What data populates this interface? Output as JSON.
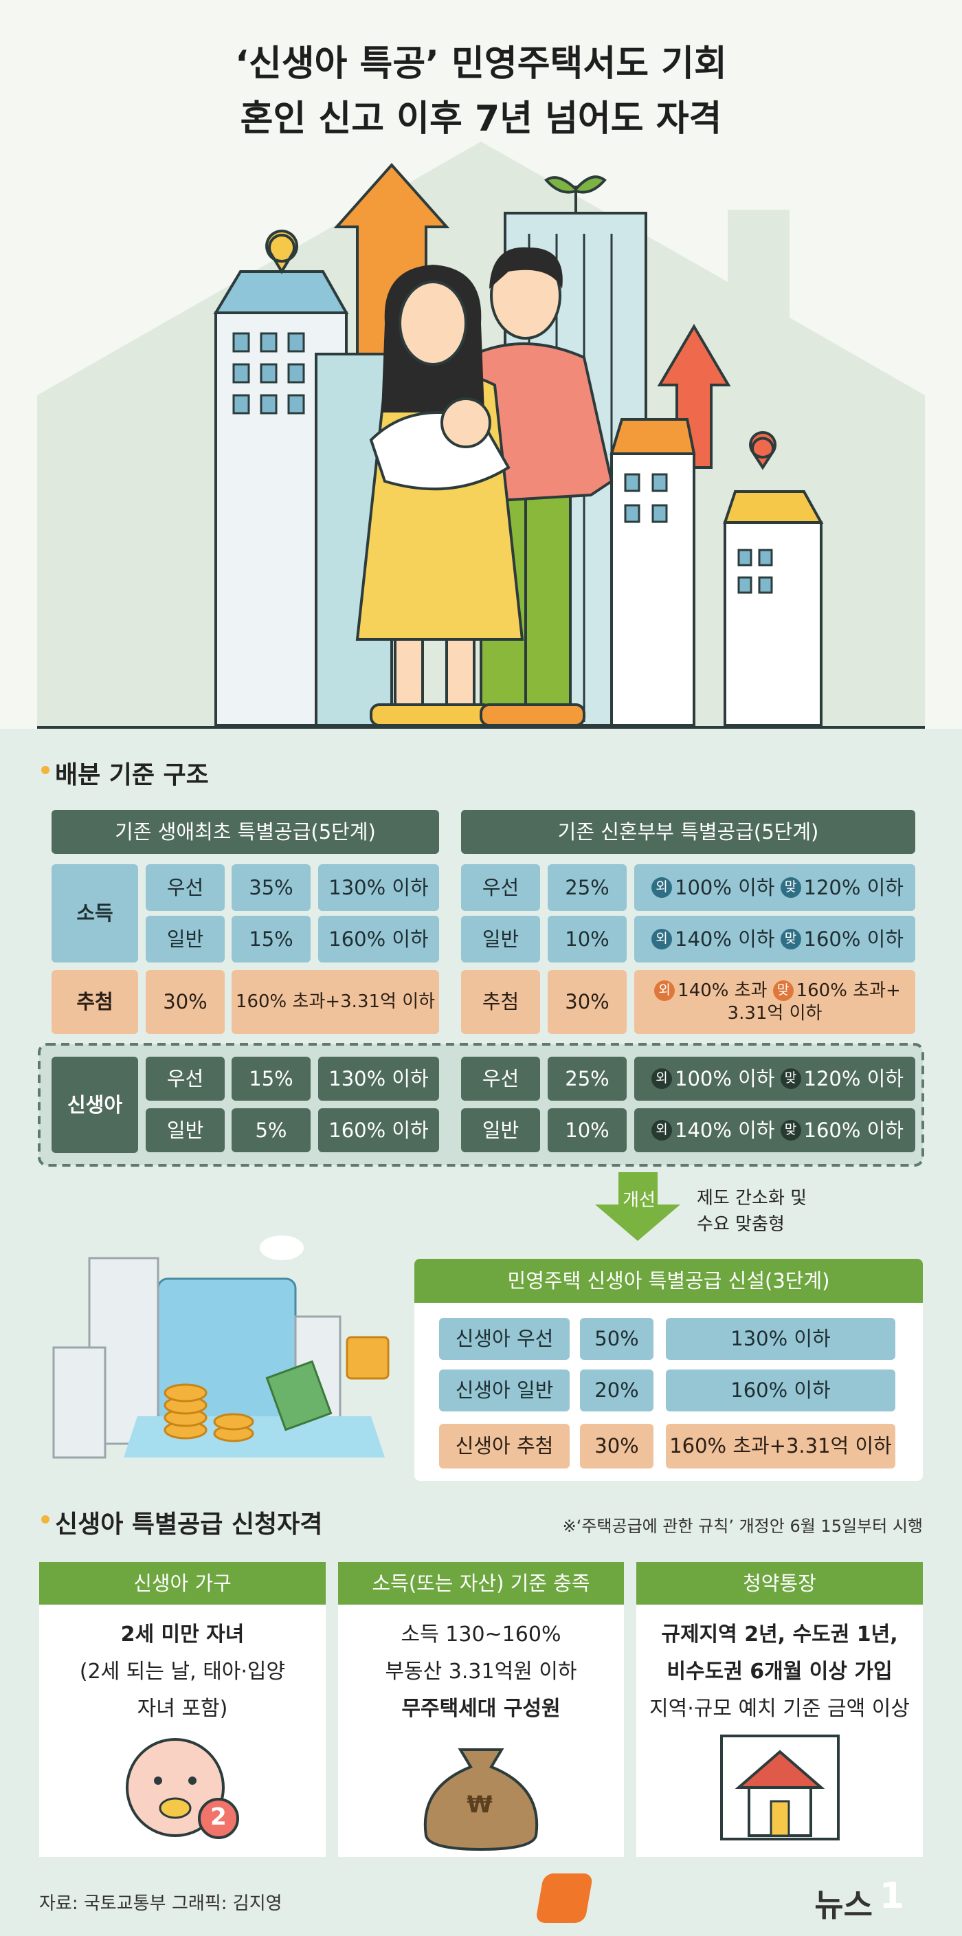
{
  "header": {
    "title_lines": [
      "‘신생아 특공’ 민영주택서도 기회",
      "혼인 신고 이후 7년 넘어도 자격"
    ]
  },
  "allocation": {
    "title": "배분 기준 구조",
    "groups": {
      "income": "소득",
      "lottery": "추첨",
      "newborn": "신생아"
    },
    "first_home": {
      "header": "기존 생애최초 특별공급(5단계)",
      "income": [
        [
          "우선",
          "35%",
          "130% 이하"
        ],
        [
          "일반",
          "15%",
          "160% 이하"
        ]
      ],
      "lottery": [
        "30%",
        "160% 초과+3.31억 이하"
      ],
      "newborn": [
        [
          "우선",
          "15%",
          "130% 이하"
        ],
        [
          "일반",
          "5%",
          "160% 이하"
        ]
      ]
    },
    "newlywed": {
      "header": "기존 신혼부부 특별공급(5단계)",
      "income": [
        {
          "tier": "우선",
          "share": "25%",
          "criteria": [
            {
              "badge": "외",
              "text": "100% 이하"
            },
            {
              "badge": "맞",
              "text": "120% 이하"
            }
          ]
        },
        {
          "tier": "일반",
          "share": "10%",
          "criteria": [
            {
              "badge": "외",
              "text": "140% 이하"
            },
            {
              "badge": "맞",
              "text": "160% 이하"
            }
          ]
        }
      ],
      "lottery": {
        "tier": "추첨",
        "share": "30%",
        "criteria": [
          {
            "badge": "외",
            "text": "140% 초과"
          },
          {
            "badge": "맞",
            "text": "160% 초과+"
          }
        ],
        "criteria_line2": "3.31억 이하"
      },
      "newborn": [
        {
          "tier": "우선",
          "share": "25%",
          "criteria": [
            {
              "badge": "외",
              "text": "100% 이하"
            },
            {
              "badge": "맞",
              "text": "120% 이하"
            }
          ]
        },
        {
          "tier": "일반",
          "share": "10%",
          "criteria": [
            {
              "badge": "외",
              "text": "140% 이하"
            },
            {
              "badge": "맞",
              "text": "160% 이하"
            }
          ]
        }
      ]
    }
  },
  "improvement": {
    "label": "개선",
    "note_lines": [
      "제도 간소화 및",
      "수요 맞춤형"
    ]
  },
  "new_system": {
    "header": "민영주택 신생아 특별공급 신설(3단계)",
    "rows": [
      [
        "신생아 우선",
        "50%",
        "130% 이하"
      ],
      [
        "신생아 일반",
        "20%",
        "160% 이하"
      ],
      [
        "신생아 추첨",
        "30%",
        "160% 초과+3.31억 이하"
      ]
    ]
  },
  "eligibility": {
    "title": "신생아 특별공급 신청자격",
    "note": "※‘주택공급에 관한 규칙’ 개정안 6월 15일부터 시행",
    "columns": [
      {
        "header": "신생아 가구",
        "lines": [
          {
            "text": "2세 미만 자녀",
            "bold": true
          },
          {
            "text": "(2세 되는 날, 태아·입양",
            "bold": false
          },
          {
            "text": "자녀 포함)",
            "bold": false
          }
        ],
        "icon_label": "2"
      },
      {
        "header": "소득(또는 자산) 기준 충족",
        "lines": [
          {
            "text": "소득 130~160%",
            "bold": false
          },
          {
            "text": "부동산 3.31억원 이하",
            "bold": false
          },
          {
            "text": "무주택세대 구성원",
            "bold": true
          }
        ],
        "icon_label": "₩"
      },
      {
        "header": "청약통장",
        "lines": [
          {
            "text": "규제지역 2년, 수도권 1년,",
            "bold": true
          },
          {
            "text": "비수도권 6개월 이상 가입",
            "bold": true
          },
          {
            "text": "지역·규모 예치 기준 금액 이상",
            "bold": false
          }
        ],
        "icon_label": null
      }
    ]
  },
  "footer": {
    "source": "자료: 국토교통부",
    "graphic": "그래픽: 김지영",
    "logo_text": "뉴스",
    "logo_number": "1"
  }
}
